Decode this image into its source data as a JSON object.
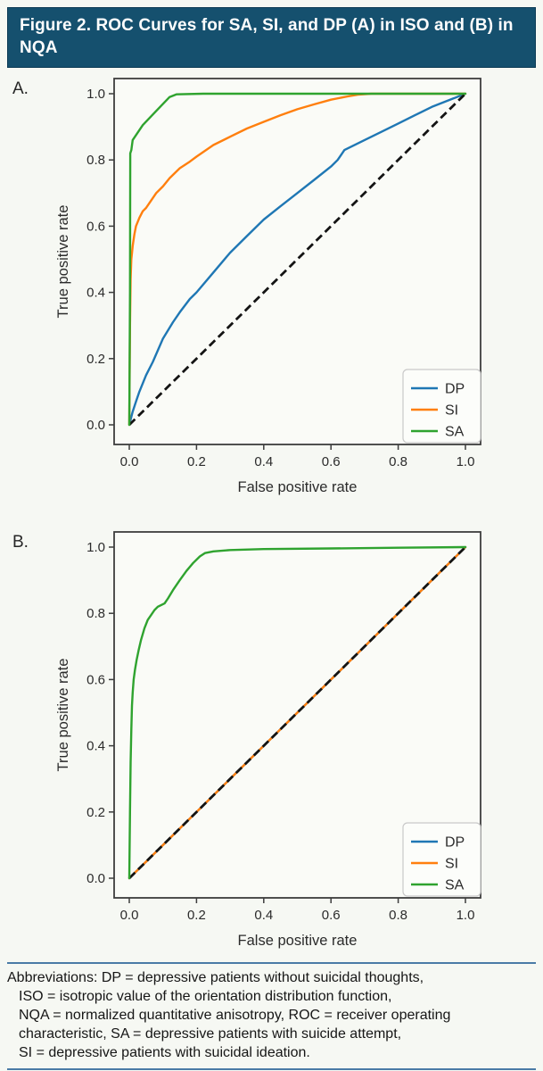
{
  "banner": {
    "title": "Figure 2. ROC Curves for SA, SI, and DP (A) in ISO and (B) in NQA",
    "bg_color": "#15506e",
    "text_color": "#fdfdfd"
  },
  "footer": {
    "rule_color": "#4a7ba6",
    "lines": [
      "Abbreviations: DP = depressive patients without suicidal thoughts,",
      "ISO = isotropic value of the orientation distribution function,",
      "NQA = normalized quantitative anisotropy, ROC = receiver operating",
      "characteristic, SA = depressive patients with suicide attempt,",
      "SI = depressive patients with suicidal ideation."
    ]
  },
  "chart_data": [
    {
      "type": "line",
      "panel_label": "A.",
      "xlabel": "False positive rate",
      "ylabel": "True positive rate",
      "xlim": [
        0,
        1
      ],
      "ylim": [
        0,
        1
      ],
      "xticks": [
        "0.0",
        "0.2",
        "0.4",
        "0.6",
        "0.8",
        "1.0"
      ],
      "yticks": [
        "0.0",
        "0.2",
        "0.4",
        "0.6",
        "0.8",
        "1.0"
      ],
      "grid": false,
      "legend_position": "lower right",
      "legend_entries": [
        "DP",
        "SI",
        "SA"
      ],
      "diagonal_reference": {
        "style": "dashed",
        "color": "#141414",
        "from": [
          0,
          0
        ],
        "to": [
          1,
          1
        ]
      },
      "draw_order": [
        "DP",
        "SI",
        "diagonal",
        "SA"
      ],
      "series": [
        {
          "name": "DP",
          "color": "#1f77b4",
          "points": [
            [
              0,
              0
            ],
            [
              0.005,
              0.02
            ],
            [
              0.01,
              0.04
            ],
            [
              0.02,
              0.07
            ],
            [
              0.03,
              0.1
            ],
            [
              0.05,
              0.15
            ],
            [
              0.07,
              0.19
            ],
            [
              0.1,
              0.26
            ],
            [
              0.13,
              0.31
            ],
            [
              0.15,
              0.34
            ],
            [
              0.18,
              0.38
            ],
            [
              0.2,
              0.4
            ],
            [
              0.25,
              0.46
            ],
            [
              0.3,
              0.52
            ],
            [
              0.35,
              0.57
            ],
            [
              0.4,
              0.62
            ],
            [
              0.45,
              0.66
            ],
            [
              0.5,
              0.7
            ],
            [
              0.55,
              0.74
            ],
            [
              0.6,
              0.78
            ],
            [
              0.62,
              0.8
            ],
            [
              0.64,
              0.83
            ],
            [
              0.7,
              0.86
            ],
            [
              0.75,
              0.885
            ],
            [
              0.8,
              0.91
            ],
            [
              0.85,
              0.935
            ],
            [
              0.9,
              0.96
            ],
            [
              0.95,
              0.98
            ],
            [
              1,
              1
            ]
          ]
        },
        {
          "name": "SI",
          "color": "#ff7f0e",
          "points": [
            [
              0,
              0
            ],
            [
              0.002,
              0.3
            ],
            [
              0.004,
              0.44
            ],
            [
              0.006,
              0.5
            ],
            [
              0.01,
              0.54
            ],
            [
              0.015,
              0.575
            ],
            [
              0.02,
              0.6
            ],
            [
              0.03,
              0.625
            ],
            [
              0.04,
              0.645
            ],
            [
              0.05,
              0.655
            ],
            [
              0.06,
              0.67
            ],
            [
              0.08,
              0.7
            ],
            [
              0.1,
              0.72
            ],
            [
              0.12,
              0.745
            ],
            [
              0.15,
              0.775
            ],
            [
              0.18,
              0.795
            ],
            [
              0.2,
              0.81
            ],
            [
              0.25,
              0.845
            ],
            [
              0.3,
              0.87
            ],
            [
              0.35,
              0.895
            ],
            [
              0.4,
              0.915
            ],
            [
              0.45,
              0.935
            ],
            [
              0.5,
              0.953
            ],
            [
              0.55,
              0.968
            ],
            [
              0.6,
              0.982
            ],
            [
              0.65,
              0.992
            ],
            [
              0.68,
              0.997
            ],
            [
              0.72,
              1.0
            ],
            [
              1,
              1
            ]
          ]
        },
        {
          "name": "SA",
          "color": "#2fa32f",
          "points": [
            [
              0,
              0
            ],
            [
              0.002,
              0.4
            ],
            [
              0.003,
              0.82
            ],
            [
              0.006,
              0.83
            ],
            [
              0.01,
              0.86
            ],
            [
              0.04,
              0.905
            ],
            [
              0.08,
              0.948
            ],
            [
              0.12,
              0.99
            ],
            [
              0.14,
              0.998
            ],
            [
              0.22,
              1.0
            ],
            [
              1,
              1
            ]
          ]
        }
      ]
    },
    {
      "type": "line",
      "panel_label": "B.",
      "xlabel": "False positive rate",
      "ylabel": "True positive rate",
      "xlim": [
        0,
        1
      ],
      "ylim": [
        0,
        1
      ],
      "xticks": [
        "0.0",
        "0.2",
        "0.4",
        "0.6",
        "0.8",
        "1.0"
      ],
      "yticks": [
        "0.0",
        "0.2",
        "0.4",
        "0.6",
        "0.8",
        "1.0"
      ],
      "grid": false,
      "legend_position": "lower right",
      "legend_entries": [
        "DP",
        "SI",
        "SA"
      ],
      "diagonal_reference": {
        "style": "dashed",
        "color": "#141414",
        "from": [
          0,
          0
        ],
        "to": [
          1,
          1
        ]
      },
      "draw_order": [
        "DP",
        "SI",
        "diagonal",
        "SA"
      ],
      "series": [
        {
          "name": "DP",
          "color": "#1f77b4",
          "points": [
            [
              0,
              0
            ],
            [
              1,
              1
            ]
          ]
        },
        {
          "name": "SI",
          "color": "#ff7f0e",
          "points": [
            [
              0,
              0
            ],
            [
              1,
              1
            ]
          ]
        },
        {
          "name": "SA",
          "color": "#2fa32f",
          "points": [
            [
              0,
              0
            ],
            [
              0.002,
              0.2
            ],
            [
              0.004,
              0.35
            ],
            [
              0.006,
              0.45
            ],
            [
              0.008,
              0.52
            ],
            [
              0.01,
              0.56
            ],
            [
              0.013,
              0.6
            ],
            [
              0.017,
              0.63
            ],
            [
              0.022,
              0.66
            ],
            [
              0.028,
              0.69
            ],
            [
              0.035,
              0.72
            ],
            [
              0.045,
              0.755
            ],
            [
              0.055,
              0.78
            ],
            [
              0.065,
              0.795
            ],
            [
              0.075,
              0.81
            ],
            [
              0.085,
              0.82
            ],
            [
              0.095,
              0.825
            ],
            [
              0.105,
              0.83
            ],
            [
              0.115,
              0.845
            ],
            [
              0.13,
              0.87
            ],
            [
              0.15,
              0.9
            ],
            [
              0.17,
              0.928
            ],
            [
              0.19,
              0.952
            ],
            [
              0.21,
              0.972
            ],
            [
              0.225,
              0.982
            ],
            [
              0.25,
              0.987
            ],
            [
              0.3,
              0.991
            ],
            [
              0.4,
              0.994
            ],
            [
              0.6,
              0.996
            ],
            [
              0.8,
              0.998
            ],
            [
              1,
              1
            ]
          ]
        }
      ]
    }
  ]
}
